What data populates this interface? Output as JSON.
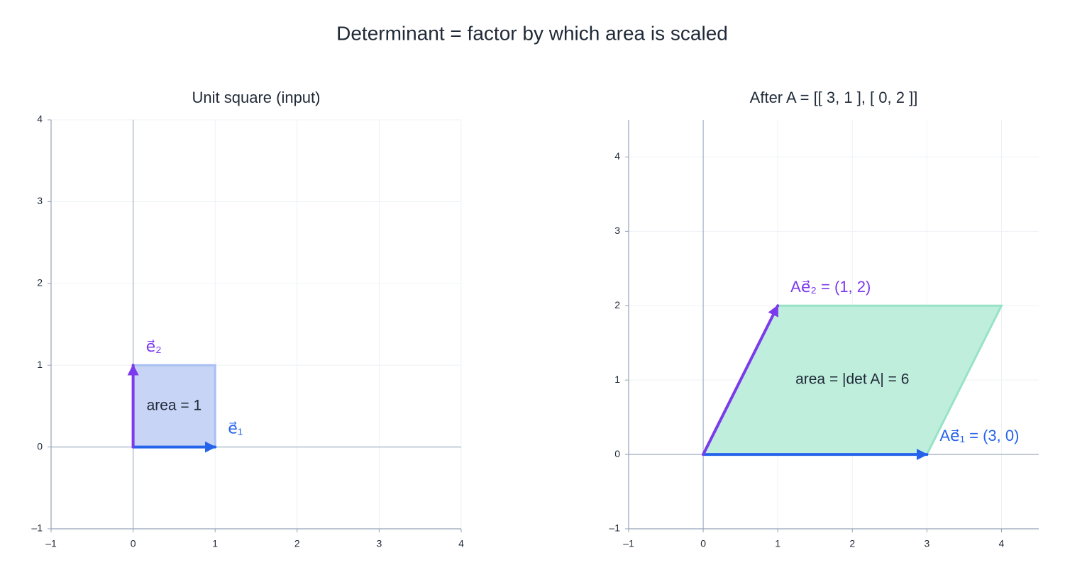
{
  "title": "Determinant = factor by which area is scaled",
  "chart_data": [
    {
      "type": "vector",
      "title": "Unit square (input)",
      "xlim": [
        -1,
        4
      ],
      "ylim": [
        -1,
        4
      ],
      "xticks": [
        {
          "value": -1,
          "label": "–1"
        },
        0,
        1,
        2,
        3,
        4
      ],
      "yticks": [
        {
          "value": -1,
          "label": "–1"
        },
        0,
        1,
        2,
        3,
        4
      ],
      "grid": true,
      "region": {
        "x": [
          0,
          1,
          1,
          0
        ],
        "y": [
          0,
          0,
          1,
          1
        ],
        "color": "#c7d4f6",
        "edge": "#a9bff3",
        "label": "area = 1"
      },
      "vectors": [
        {
          "label": "e⃗₁",
          "color": "#2563eb",
          "x": 1,
          "y": 0
        },
        {
          "label": "e⃗₂",
          "color": "#7c3aed",
          "x": 0,
          "y": 1
        }
      ]
    },
    {
      "type": "vector",
      "title": "After A = [[ 3, 1 ], [ 0, 2 ]]",
      "xlim": [
        -1,
        4.5
      ],
      "ylim": [
        -1,
        4.5
      ],
      "xticks": [
        {
          "value": -1,
          "label": "–1"
        },
        0,
        1,
        2,
        3,
        4
      ],
      "yticks": [
        {
          "value": -1,
          "label": "–1"
        },
        0,
        1,
        2,
        3,
        4
      ],
      "grid": true,
      "region": {
        "x": [
          0,
          3,
          4,
          1
        ],
        "y": [
          0,
          0,
          2,
          2
        ],
        "color": "#bfeedd",
        "edge": "#98e3c6",
        "label": "area = |det A| = 6"
      },
      "vectors": [
        {
          "label": "Ae⃗₁ = (3, 0)",
          "color": "#2563eb",
          "x": 3,
          "y": 0
        },
        {
          "label": "Ae⃗₂ = (1, 2)",
          "color": "#7c3aed",
          "x": 1,
          "y": 2
        }
      ]
    }
  ]
}
